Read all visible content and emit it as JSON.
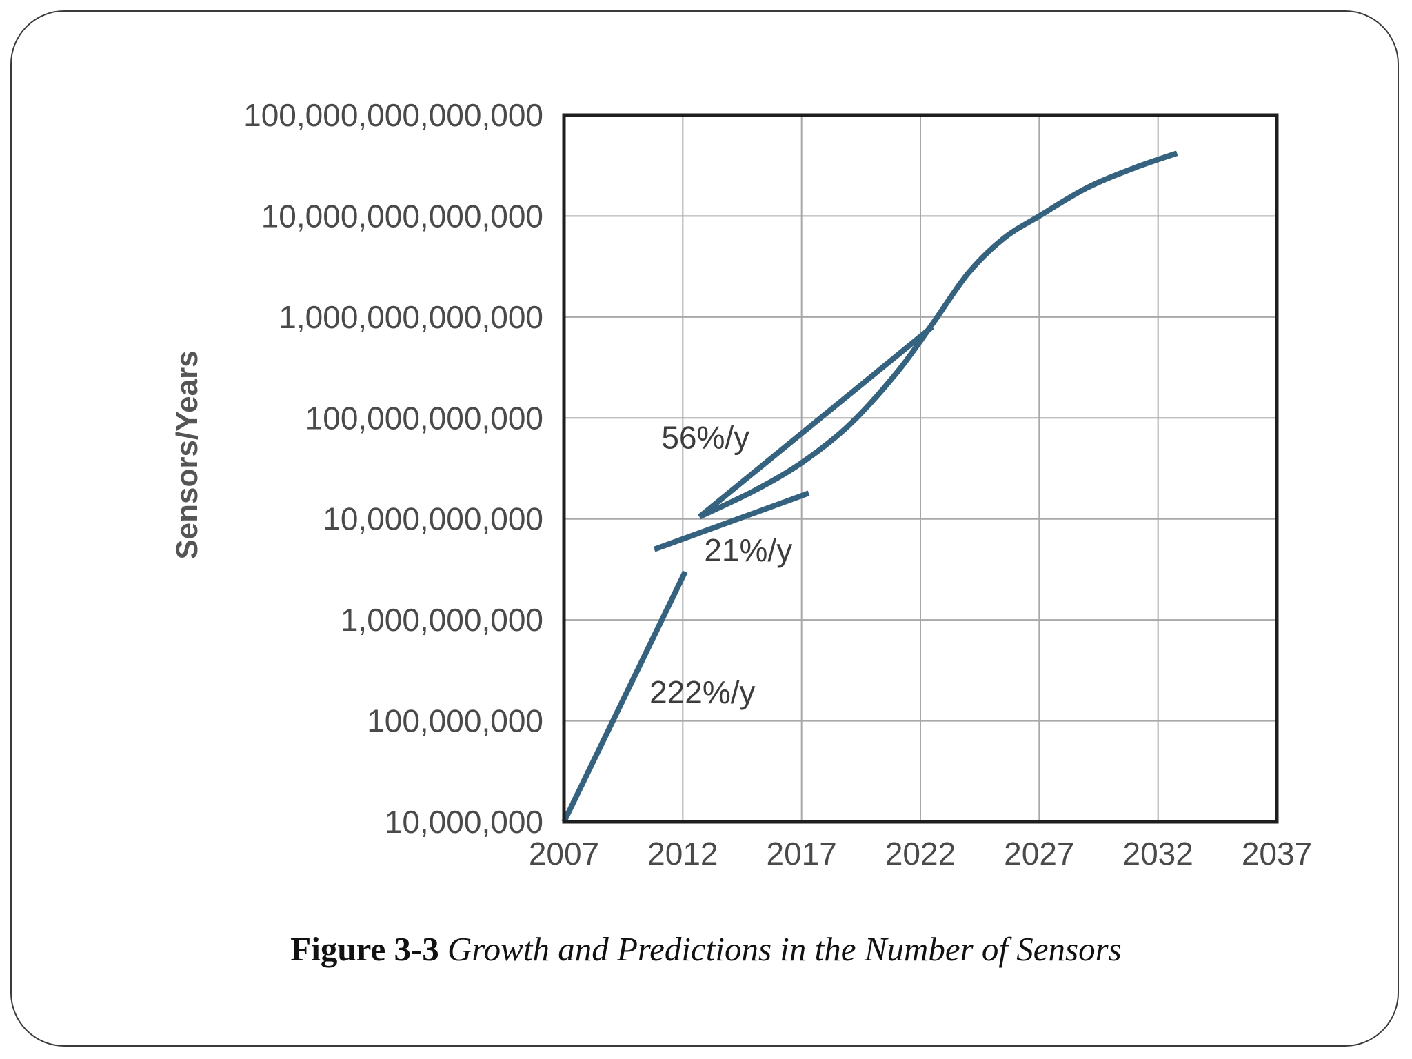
{
  "caption": {
    "label": "Figure 3-3",
    "text": "Growth and Predictions in the Number of Sensors"
  },
  "chart_data": {
    "type": "line",
    "ylabel": "Sensors/Years",
    "xlabel": "",
    "yscale": "log",
    "ylim": [
      10000000,
      100000000000000
    ],
    "xlim": [
      2007,
      2037
    ],
    "grid": true,
    "x_ticks": [
      "2007",
      "2012",
      "2017",
      "2022",
      "2027",
      "2032",
      "2037"
    ],
    "y_ticks": [
      "10,000,000",
      "100,000,000",
      "1,000,000,000",
      "10,000,000,000",
      "100,000,000,000",
      "1,000,000,000,000",
      "10,000,000,000,000",
      "100,000,000,000,000"
    ],
    "line_color": "#35637f",
    "series": [
      {
        "label": "222%/y",
        "x": [
          2007,
          2012.1
        ],
        "y": [
          10000000,
          3000000000
        ]
      },
      {
        "label": "21%/y",
        "x": [
          2010.8,
          2017.3
        ],
        "y": [
          5000000000,
          18000000000
        ]
      },
      {
        "label": "56%/y",
        "x": [
          2012.7,
          2022.5
        ],
        "y": [
          10500000000,
          800000000000
        ]
      },
      {
        "label": "",
        "x": [
          2012.7,
          2015,
          2017,
          2019,
          2021,
          2022.5,
          2024,
          2025.5,
          2027,
          2029,
          2031,
          2032.8
        ],
        "y": [
          10500000000,
          19000000000,
          36000000000,
          85000000000,
          280000000000,
          850000000000,
          2700000000000,
          6000000000000,
          10000000000000,
          19000000000000,
          30000000000000,
          42000000000000
        ]
      }
    ],
    "annotations": [
      {
        "text": "56%/y",
        "x": 2011.1,
        "y": 50000000000
      },
      {
        "text": "21%/y",
        "x": 2012.9,
        "y": 3800000000
      },
      {
        "text": "222%/y",
        "x": 2010.6,
        "y": 150000000
      }
    ]
  }
}
